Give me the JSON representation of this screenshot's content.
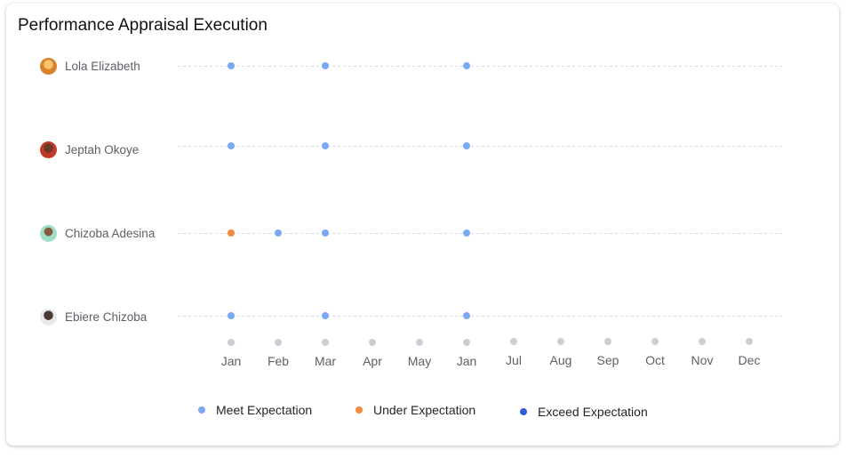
{
  "title": "Performance Appraisal Execution",
  "employees": [
    {
      "name": "Lola Elizabeth"
    },
    {
      "name": "Jeptah Okoye"
    },
    {
      "name": "Chizoba Adesina"
    },
    {
      "name": "Ebiere Chizoba"
    }
  ],
  "legend": [
    {
      "label": "Meet Expectation",
      "color": "#7aa9f3"
    },
    {
      "label": "Under Expectation",
      "color": "#f08a3c"
    },
    {
      "label": "Exceed Expectation",
      "color": "#2f5fd6"
    }
  ],
  "chart_data": {
    "type": "scatter",
    "x_ticks": [
      "Jan",
      "Feb",
      "Mar",
      "Apr",
      "May",
      "Jan",
      "Jul",
      "Aug",
      "Sep",
      "Oct",
      "Nov",
      "Dec"
    ],
    "rows": [
      "Lola Elizabeth",
      "Jeptah Okoye",
      "Chizoba Adesina",
      "Ebiere Chizoba"
    ],
    "points": [
      {
        "row": 0,
        "x": 0,
        "category": "Meet Expectation"
      },
      {
        "row": 0,
        "x": 2,
        "category": "Meet Expectation"
      },
      {
        "row": 0,
        "x": 5,
        "category": "Meet Expectation"
      },
      {
        "row": 1,
        "x": 0,
        "category": "Meet Expectation"
      },
      {
        "row": 1,
        "x": 2,
        "category": "Meet Expectation"
      },
      {
        "row": 1,
        "x": 5,
        "category": "Meet Expectation"
      },
      {
        "row": 2,
        "x": 0,
        "category": "Under Expectation"
      },
      {
        "row": 2,
        "x": 1,
        "category": "Meet Expectation"
      },
      {
        "row": 2,
        "x": 2,
        "category": "Meet Expectation"
      },
      {
        "row": 2,
        "x": 5,
        "category": "Meet Expectation"
      },
      {
        "row": 3,
        "x": 0,
        "category": "Meet Expectation"
      },
      {
        "row": 3,
        "x": 2,
        "category": "Meet Expectation"
      },
      {
        "row": 3,
        "x": 5,
        "category": "Meet Expectation"
      }
    ],
    "grid": true,
    "legend_position": "bottom"
  }
}
